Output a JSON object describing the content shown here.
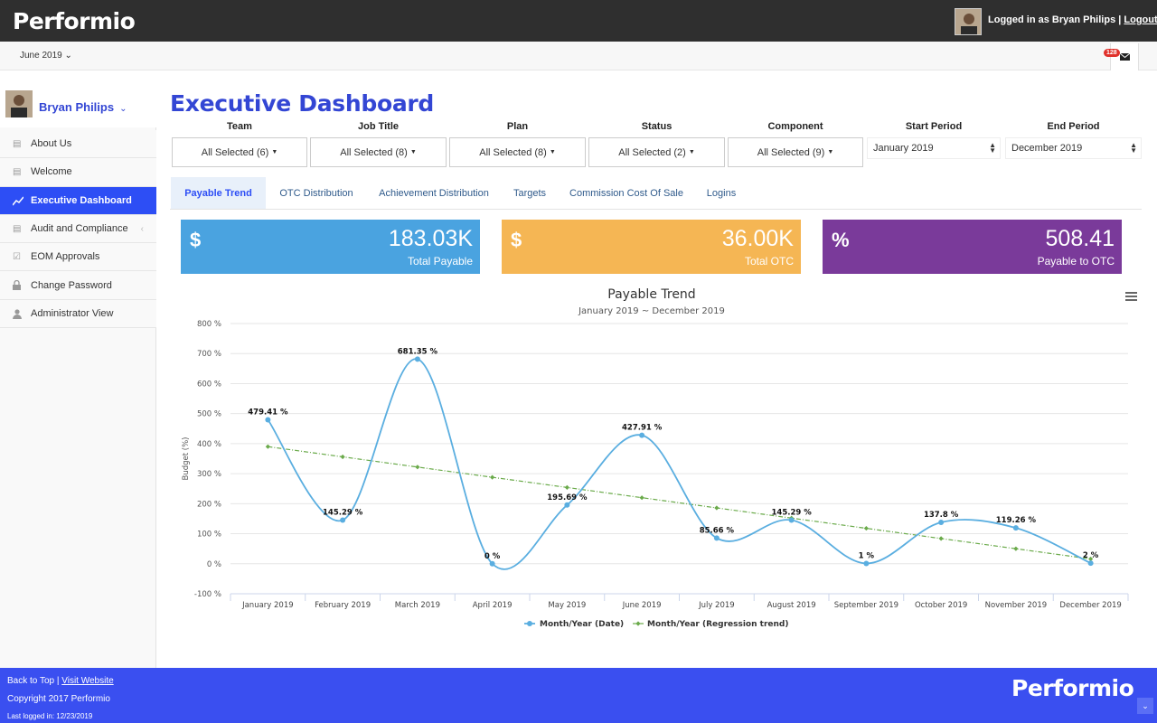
{
  "header": {
    "brand": "Performio",
    "logged_in_prefix": "Logged in as Bryan Philips |",
    "logout": "Logout"
  },
  "subbar": {
    "period": "June 2019 ⌄",
    "mail_count": "128"
  },
  "sidebar": {
    "user_name": "Bryan Philips",
    "items": [
      {
        "label": "About Us",
        "icon": "document-icon"
      },
      {
        "label": "Welcome",
        "icon": "document-icon"
      },
      {
        "label": "Executive Dashboard",
        "icon": "line-chart-icon"
      },
      {
        "label": "Audit and Compliance",
        "icon": "document-icon"
      },
      {
        "label": "EOM Approvals",
        "icon": "checkbox-icon"
      },
      {
        "label": "Change Password",
        "icon": "lock-icon"
      },
      {
        "label": "Administrator View",
        "icon": "user-icon"
      }
    ]
  },
  "main": {
    "title": "Executive Dashboard",
    "filters": [
      {
        "label": "Team",
        "value": "All Selected (6)"
      },
      {
        "label": "Job Title",
        "value": "All Selected (8)"
      },
      {
        "label": "Plan",
        "value": "All Selected (8)"
      },
      {
        "label": "Status",
        "value": "All Selected (2)"
      },
      {
        "label": "Component",
        "value": "All Selected (9)"
      }
    ],
    "start_period": {
      "label": "Start Period",
      "value": "January 2019"
    },
    "end_period": {
      "label": "End Period",
      "value": "December 2019"
    },
    "tabs": [
      "Payable Trend",
      "OTC Distribution",
      "Achievement Distribution",
      "Targets",
      "Commission Cost Of Sale",
      "Logins"
    ],
    "cards": [
      {
        "symbol": "$",
        "value": "183.03K",
        "label": "Total Payable",
        "color": "#4aa3e0"
      },
      {
        "symbol": "$",
        "value": "36.00K",
        "label": "Total OTC",
        "color": "#f5b654"
      },
      {
        "symbol": "%",
        "value": "508.41",
        "label": "Payable to OTC",
        "color": "#7a3a9a"
      }
    ]
  },
  "chart_data": {
    "type": "line",
    "title": "Payable Trend",
    "subtitle": "January 2019 ~ December 2019",
    "ylabel": "Budget (%)",
    "xlabel": "",
    "ylim": [
      -100,
      800
    ],
    "yticks": [
      -100,
      0,
      100,
      200,
      300,
      400,
      500,
      600,
      700,
      800
    ],
    "ytick_suffix": " %",
    "grid": true,
    "legend": "bottom",
    "categories": [
      "January 2019",
      "February 2019",
      "March 2019",
      "April 2019",
      "May 2019",
      "June 2019",
      "July 2019",
      "August 2019",
      "September 2019",
      "October 2019",
      "November 2019",
      "December 2019"
    ],
    "series": [
      {
        "name": "Month/Year (Date)",
        "color": "#5aaee0",
        "values": [
          479.41,
          145.29,
          681.35,
          0,
          195.69,
          427.91,
          85.66,
          145.29,
          1,
          137.8,
          119.26,
          2
        ],
        "data_labels": [
          "479.41 %",
          "145.29 %",
          "681.35 %",
          "0 %",
          "195.69 %",
          "427.91 %",
          "85.66 %",
          "145.29 %",
          "1 %",
          "137.8 %",
          "119.26 %",
          "2 %"
        ]
      },
      {
        "name": "Month/Year (Regression trend)",
        "color": "#6aaa4a",
        "values": [
          390,
          356,
          322,
          288,
          254,
          220,
          186,
          152,
          118,
          84,
          50,
          16
        ]
      }
    ]
  },
  "footer": {
    "back_to_top": "Back to Top",
    "visit_website": "Visit Website",
    "copyright": "Copyright 2017 Performio",
    "last_logged": "Last logged in: 12/23/2019",
    "brand": "Performio"
  }
}
